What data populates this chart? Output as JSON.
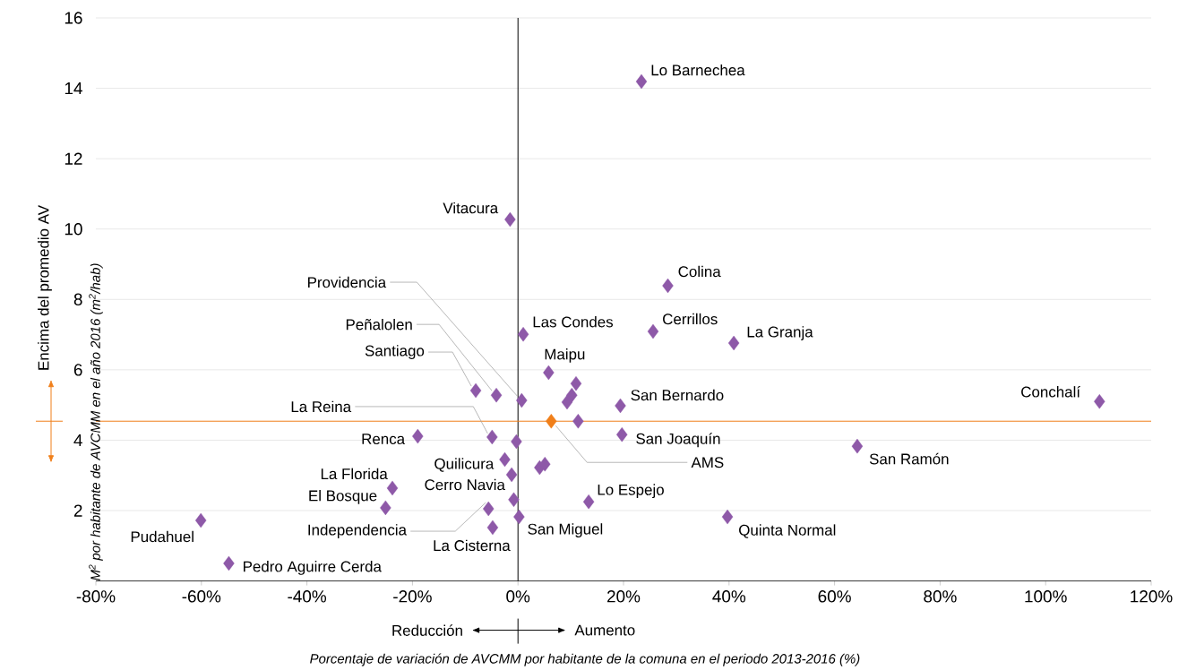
{
  "chart_data": {
    "type": "scatter",
    "xlabel": "Porcentaje de variación de AVCMM por habitante de la comuna en el periodo 2013-2016 (%)",
    "ylabel": "M$^{2}$ por habitante de AVCMM en el año 2016 (m$^{2}$/hab)",
    "xlim": [
      -80,
      120
    ],
    "xticks": [
      {
        "value": -80,
        "label": "-80%"
      },
      {
        "value": -60,
        "label": "-60%"
      },
      {
        "value": -40,
        "label": "-40%"
      },
      {
        "value": -20,
        "label": "-20%"
      },
      {
        "value": 0,
        "label": "0%"
      },
      {
        "value": 20,
        "label": "20%"
      },
      {
        "value": 40,
        "label": "40%"
      },
      {
        "value": 60,
        "label": "60%"
      },
      {
        "value": 80,
        "label": "80%"
      },
      {
        "value": 100,
        "label": "100%"
      },
      {
        "value": 120,
        "label": "120%"
      }
    ],
    "ylim": [
      0,
      16
    ],
    "yticks": [
      2,
      4,
      6,
      8,
      10,
      12,
      14,
      16
    ],
    "grid": "y",
    "marker": "diamond",
    "series": [
      {
        "color": "#8e59a8",
        "x": [
          23.4,
          -1.5,
          28.4,
          1.0,
          25.6,
          40.9,
          0.7,
          -4.1,
          -8.0,
          5.8,
          11.0,
          10.2,
          9.3,
          19.4,
          110.2,
          -4.9,
          -19.0,
          19.7,
          11.4,
          -0.3,
          64.3,
          -2.5,
          -1.2,
          4.1,
          5.1,
          -23.8,
          -25.1,
          13.4,
          -0.8,
          -5.6,
          0.2,
          39.7,
          -4.8,
          -60.1,
          -54.8
        ],
        "values": [
          14.19,
          10.27,
          8.39,
          7.01,
          7.09,
          6.76,
          5.13,
          5.28,
          5.41,
          5.92,
          5.61,
          5.28,
          5.08,
          4.98,
          5.1,
          4.09,
          4.11,
          4.16,
          4.54,
          3.96,
          3.83,
          3.45,
          3.02,
          3.22,
          3.32,
          2.64,
          2.08,
          2.25,
          2.31,
          2.05,
          1.82,
          1.82,
          1.52,
          1.72,
          0.5
        ]
      },
      {
        "color": "#f07f1a",
        "x": [
          6.3
        ],
        "values": [
          4.54
        ]
      }
    ],
    "ref_lines": [
      {
        "axis": "x",
        "value": 0,
        "color": "#000000"
      },
      {
        "axis": "y",
        "value": 4.54,
        "color": "#f07f1a"
      }
    ],
    "annotations": [
      {
        "text": "Lo Barnechea",
        "x": 23.4,
        "y": 14.19
      },
      {
        "text": "Vitacura",
        "x": -1.5,
        "y": 10.27
      },
      {
        "text": "Colina",
        "x": 28.4,
        "y": 8.39
      },
      {
        "text": "Las Condes",
        "x": 1.0,
        "y": 7.01
      },
      {
        "text": "Cerrillos",
        "x": 25.6,
        "y": 7.09
      },
      {
        "text": "La Granja",
        "x": 40.9,
        "y": 6.76
      },
      {
        "text": "Providencia",
        "x": 0.7,
        "y": 5.13
      },
      {
        "text": "Peñalolen",
        "x": -4.1,
        "y": 5.28
      },
      {
        "text": "Santiago",
        "x": -8.0,
        "y": 5.41
      },
      {
        "text": "Maipu",
        "x": 5.8,
        "y": 5.92
      },
      {
        "text": "San Bernardo",
        "x": 19.4,
        "y": 4.98
      },
      {
        "text": "Conchalí",
        "x": 110.2,
        "y": 5.1
      },
      {
        "text": "La Reina",
        "x": -4.9,
        "y": 4.09
      },
      {
        "text": "Renca",
        "x": -19.0,
        "y": 4.11
      },
      {
        "text": "San Joaquín",
        "x": 19.7,
        "y": 4.16
      },
      {
        "text": "AMS",
        "x": 6.3,
        "y": 4.54
      },
      {
        "text": "San Ramón",
        "x": 64.3,
        "y": 3.83
      },
      {
        "text": "Quilicura",
        "x": -2.5,
        "y": 3.45
      },
      {
        "text": "Cerro Navia",
        "x": -1.2,
        "y": 3.02
      },
      {
        "text": "La Florida",
        "x": -23.8,
        "y": 2.64
      },
      {
        "text": "El Bosque",
        "x": -25.1,
        "y": 2.08
      },
      {
        "text": "Lo Espejo",
        "x": 13.4,
        "y": 2.25
      },
      {
        "text": "Independencia",
        "x": -5.6,
        "y": 2.05
      },
      {
        "text": "San Miguel",
        "x": 0.2,
        "y": 1.82
      },
      {
        "text": "Quinta Normal",
        "x": 39.7,
        "y": 1.82
      },
      {
        "text": "La Cisterna",
        "x": -4.8,
        "y": 1.52
      },
      {
        "text": "Pudahuel",
        "x": -60.1,
        "y": 1.72
      },
      {
        "text": "Pedro Aguirre Cerda",
        "x": -54.8,
        "y": 0.5
      },
      "Encima del promedio AV",
      "Reducción",
      "Aumento"
    ]
  }
}
